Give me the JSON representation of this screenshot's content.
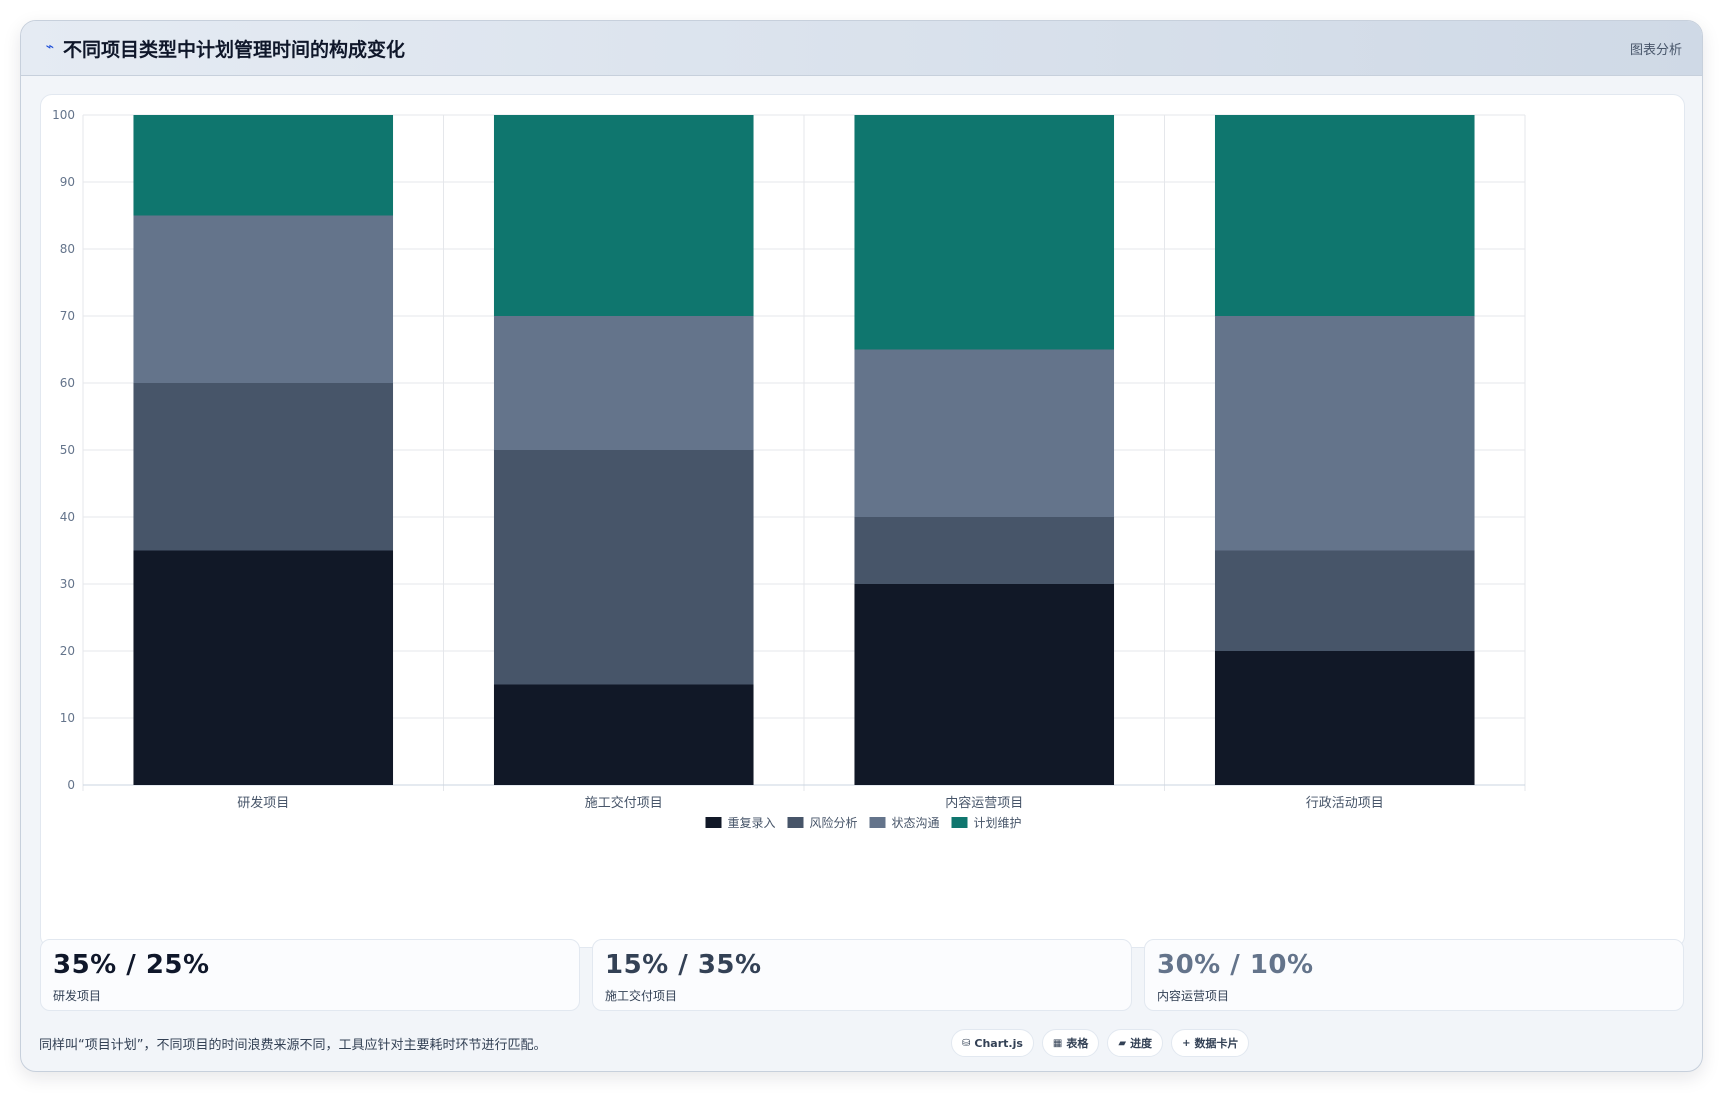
{
  "header": {
    "title": "不同项目类型中计划管理时间的构成变化",
    "analysis_label": "图表分析",
    "logo_icon": "trend-line-icon"
  },
  "chart_data": {
    "type": "bar",
    "stacked": true,
    "categories": [
      "研发项目",
      "施工交付项目",
      "内容运营项目",
      "行政活动项目"
    ],
    "series": [
      {
        "name": "重复录入",
        "color": "#111827",
        "values": [
          35,
          15,
          30,
          20
        ]
      },
      {
        "name": "风险分析",
        "color": "#475569",
        "values": [
          25,
          35,
          10,
          15
        ]
      },
      {
        "name": "状态沟通",
        "color": "#64748b",
        "values": [
          25,
          20,
          25,
          35
        ]
      },
      {
        "name": "计划维护",
        "color": "#0f766e",
        "values": [
          15,
          30,
          35,
          30
        ]
      }
    ],
    "ylim": [
      0,
      100
    ],
    "yticks": [
      0,
      10,
      20,
      30,
      40,
      50,
      60,
      70,
      80,
      90,
      100
    ],
    "grid": true,
    "legend": "bottom-center"
  },
  "stats": [
    {
      "value": "35% / 25%",
      "label": "研发项目",
      "color": "#0f172a"
    },
    {
      "value": "15% / 35%",
      "label": "施工交付项目",
      "color": "#334155"
    },
    {
      "value": "30% / 10%",
      "label": "内容运营项目",
      "color": "#64748b"
    }
  ],
  "footnote": "同样叫“项目计划”，不同项目的时间浪费来源不同，工具应针对主要耗时环节进行匹配。",
  "chips": [
    {
      "icon": "⛁",
      "icon_name": "chart-icon",
      "label": "Chart.js"
    },
    {
      "icon": "▦",
      "icon_name": "table-icon",
      "label": "表格"
    },
    {
      "icon": "▰",
      "icon_name": "progress-icon",
      "label": "进度"
    },
    {
      "icon": "+",
      "icon_name": "plus-icon",
      "label": "数据卡片"
    }
  ]
}
